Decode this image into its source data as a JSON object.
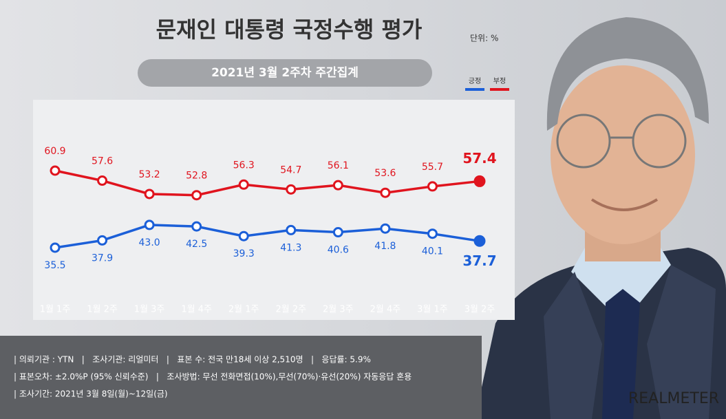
{
  "chart_data": {
    "type": "line",
    "title": "문재인 대통령 국정수행 평가",
    "unit": "단위: %",
    "subtitle": "2021년 3월 2주차 주간집계",
    "categories": [
      "1월 1주",
      "1월 2주",
      "1월 3주",
      "1월 4주",
      "2월 1주",
      "2월 2주",
      "2월 3주",
      "2월 4주",
      "3월 1주",
      "3월 2주"
    ],
    "series": [
      {
        "name": "긍정",
        "color": "#1b5fd8",
        "values": [
          35.5,
          37.9,
          43.0,
          42.5,
          39.3,
          41.3,
          40.6,
          41.8,
          40.1,
          37.7
        ],
        "value_labels": [
          "35.5",
          "37.9",
          "43.0",
          "42.5",
          "39.3",
          "41.3",
          "40.6",
          "41.8",
          "40.1",
          "37.7"
        ]
      },
      {
        "name": "부정",
        "color": "#e0141e",
        "values": [
          60.9,
          57.6,
          53.2,
          52.8,
          56.3,
          54.7,
          56.1,
          53.6,
          55.7,
          57.4
        ],
        "value_labels": [
          "60.9",
          "57.6",
          "53.2",
          "52.8",
          "56.3",
          "54.7",
          "56.1",
          "53.6",
          "55.7",
          "57.4"
        ]
      }
    ]
  },
  "footer": {
    "lines": [
      "| 의뢰기관 : YTN   |   조사기관: 리얼미터   |   표본 수: 전국 만18세 이상 2,510명   |   응답률: 5.9%",
      "| 표본오차: ±2.0%P (95% 신뢰수준)   |   조사방법: 무선 전화면접(10%),무선(70%)·유선(20%) 자동응답 혼용",
      "| 조사기간: 2021년 3월 8일(월)~12일(금)"
    ]
  },
  "logo": "REALMETER"
}
